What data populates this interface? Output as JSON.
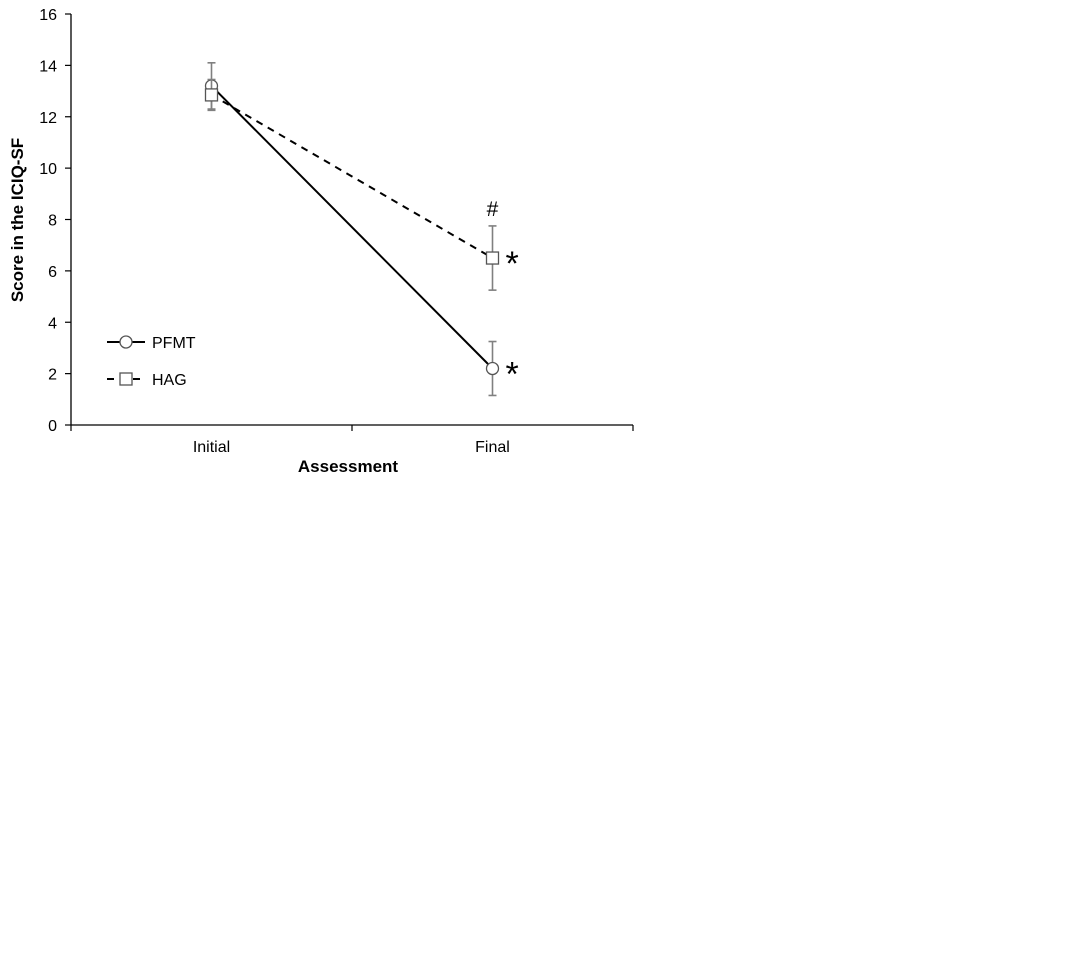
{
  "chart_data": {
    "type": "line",
    "title": "",
    "xlabel": "Assessment",
    "ylabel": "Score in the ICIQ-SF",
    "categories": [
      "Initial",
      "Final"
    ],
    "ylim": [
      0,
      16
    ],
    "yticks": [
      0,
      2,
      4,
      6,
      8,
      10,
      12,
      14,
      16
    ],
    "grid": false,
    "legend_position": "bottom-left",
    "series": [
      {
        "name": "PFMT",
        "values": [
          13.2,
          2.2
        ],
        "error": [
          0.9,
          1.05
        ],
        "marker": "circle",
        "line_style": "solid",
        "color": "#000000"
      },
      {
        "name": "HAG",
        "values": [
          12.85,
          6.5
        ],
        "error": [
          0.6,
          1.25
        ],
        "marker": "square",
        "line_style": "dashed",
        "color": "#000000"
      }
    ],
    "annotations": [
      {
        "text": "#",
        "category": "Final",
        "series": "HAG",
        "placement": "above"
      },
      {
        "text": "*",
        "category": "Final",
        "series": "HAG",
        "placement": "right"
      },
      {
        "text": "*",
        "category": "Final",
        "series": "PFMT",
        "placement": "right"
      }
    ]
  }
}
